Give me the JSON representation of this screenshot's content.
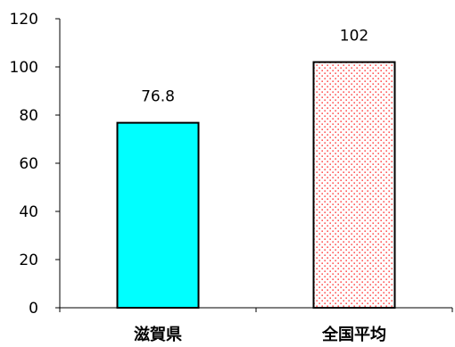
{
  "chart_data": {
    "type": "bar",
    "title": "",
    "xlabel": "",
    "ylabel": "",
    "categories": [
      "滋賀県",
      "全国平均"
    ],
    "values": [
      76.8,
      102
    ],
    "data_labels": [
      "76.8",
      "102"
    ],
    "ylim": [
      0,
      120
    ],
    "yticks": [
      0,
      20,
      40,
      60,
      80,
      100,
      120
    ],
    "ytick_labels": [
      "0",
      "20",
      "40",
      "60",
      "80",
      "100",
      "120"
    ],
    "grid": false,
    "legend": "none",
    "bar_styles": [
      {
        "fill": "#00ffff",
        "pattern": "solid",
        "stroke": "#000000"
      },
      {
        "fill": "#ffffff",
        "pattern": "red-dots",
        "dot_color": "#ff0000",
        "stroke": "#000000"
      }
    ]
  }
}
